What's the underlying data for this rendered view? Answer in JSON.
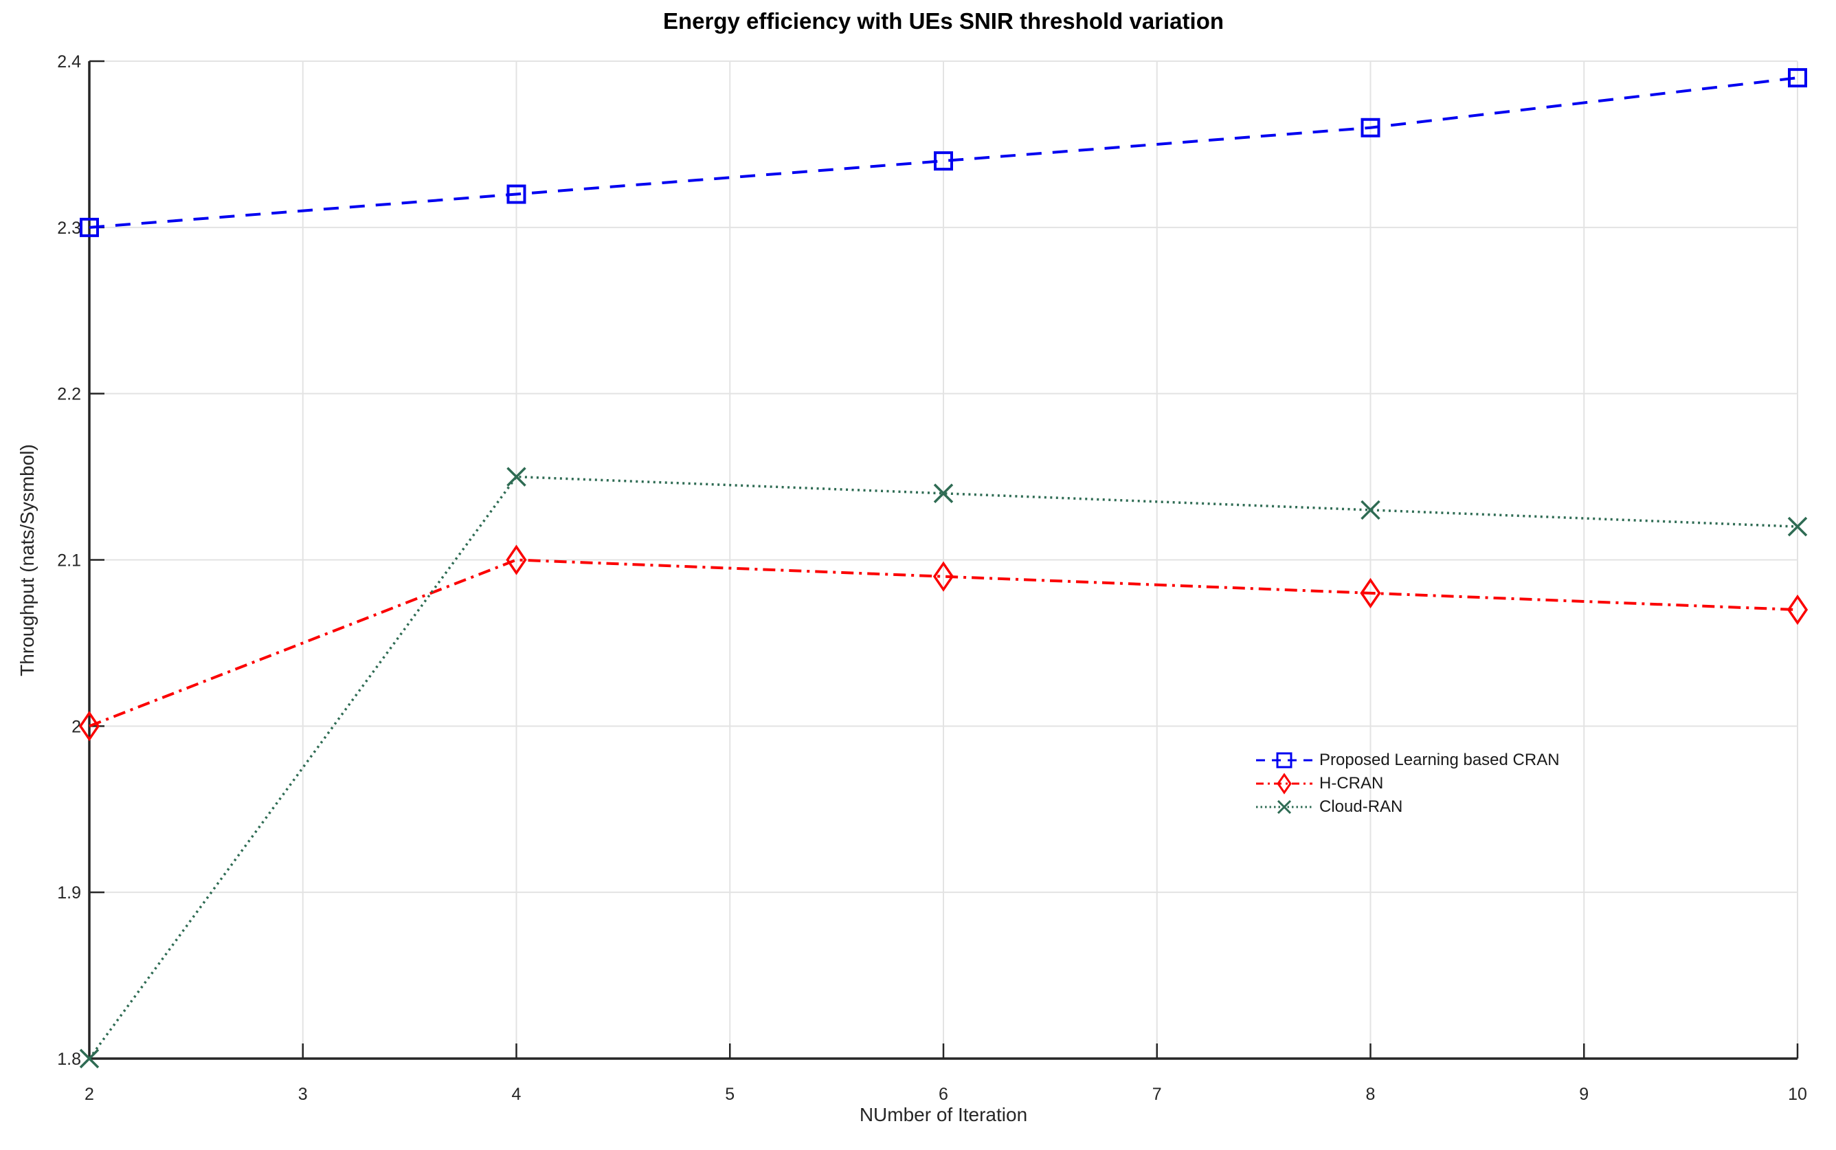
{
  "chart_data": {
    "type": "line",
    "title": "Energy efficiency with UEs SNIR threshold variation",
    "xlabel": "NUmber of Iteration",
    "ylabel": "Throughput (nats/Sysmbol)",
    "xlim": [
      2,
      10
    ],
    "ylim": [
      1.8,
      2.4
    ],
    "xticks": [
      2,
      3,
      4,
      5,
      6,
      7,
      8,
      9,
      10
    ],
    "ytick_values": [
      1.8,
      1.9,
      2.0,
      2.1,
      2.2,
      2.3,
      2.4
    ],
    "ytick_labels": [
      "1.8",
      "1.9",
      "2",
      "2.1",
      "2.2",
      "2.3",
      "2.4"
    ],
    "grid": true,
    "legend_position": "inside-right-middle",
    "x": [
      2,
      4,
      6,
      8,
      10
    ],
    "series": [
      {
        "name": "Proposed Learning based CRAN",
        "color": "#0000F0",
        "line_style": "dashed",
        "marker": "square",
        "values": [
          2.3,
          2.32,
          2.34,
          2.36,
          2.39
        ]
      },
      {
        "name": "H-CRAN",
        "color": "#FB0000",
        "line_style": "dash-dot",
        "marker": "diamond",
        "values": [
          2.0,
          2.1,
          2.09,
          2.08,
          2.07
        ]
      },
      {
        "name": "Cloud-RAN",
        "color": "#2E6B53",
        "line_style": "dotted",
        "marker": "x",
        "values": [
          1.8,
          2.15,
          2.14,
          2.13,
          2.12
        ]
      }
    ],
    "colors": {
      "grid": "#E3E3E3",
      "axis": "#262626",
      "tick_label": "#262626",
      "title": "#000000"
    }
  }
}
